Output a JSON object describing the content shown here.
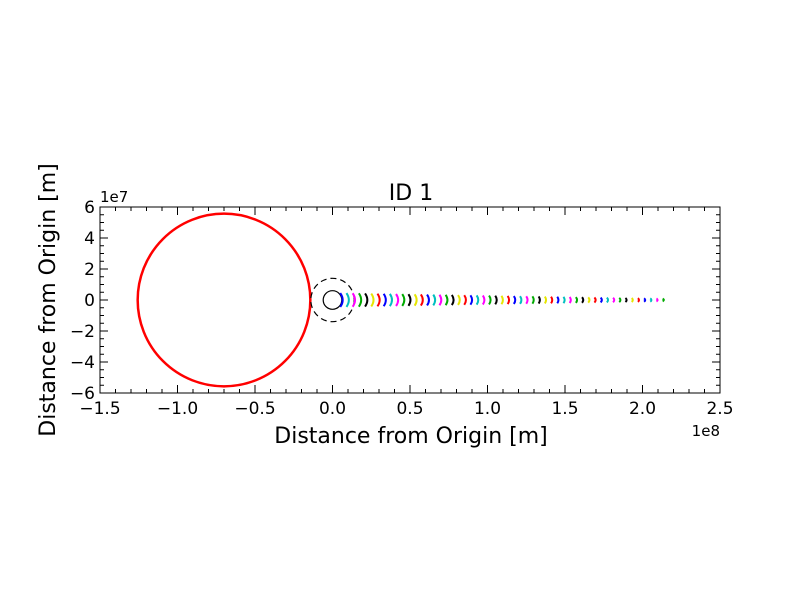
{
  "chart_data": {
    "type": "scatter",
    "title": "ID 1",
    "xlabel": "Distance from Origin [m]",
    "ylabel": "Distance from Origin [m]",
    "x_offset_label": "1e8",
    "y_offset_label": "1e7",
    "xlim": [
      -150000000,
      250000000
    ],
    "ylim": [
      -60000000,
      60000000
    ],
    "x_ticks": [
      -150000000,
      -100000000,
      -50000000,
      0,
      50000000,
      100000000,
      150000000,
      200000000,
      250000000
    ],
    "x_tick_labels": [
      "−1.5",
      "−1.0",
      "−0.5",
      "0.0",
      "0.5",
      "1.0",
      "1.5",
      "2.0",
      "2.5"
    ],
    "y_ticks": [
      -60000000,
      -40000000,
      -20000000,
      0,
      20000000,
      40000000,
      60000000
    ],
    "y_tick_labels": [
      "−6",
      "−4",
      "−2",
      "0",
      "2",
      "4",
      "6"
    ],
    "grid": false,
    "large_body": {
      "center_x": -70000000,
      "center_y": 0,
      "radius": 55700000,
      "color": "#ff0000"
    },
    "small_body": {
      "center_x": 0,
      "center_y": 0,
      "radius": 6000000,
      "color": "#000000"
    },
    "dashed_circle": {
      "center_x": 0,
      "center_y": 0,
      "radius": 14000000,
      "color": "#000000"
    },
    "arc_markers": {
      "x_start": 5000000,
      "x_end": 213000000,
      "count": 53,
      "half_height_start": 4500000,
      "half_height_end": 900000,
      "colors": [
        "#0000ff",
        "#00bfbf",
        "#ff00ff",
        "#00aa00",
        "#000000",
        "#e6e600",
        "#ff0000"
      ]
    }
  }
}
